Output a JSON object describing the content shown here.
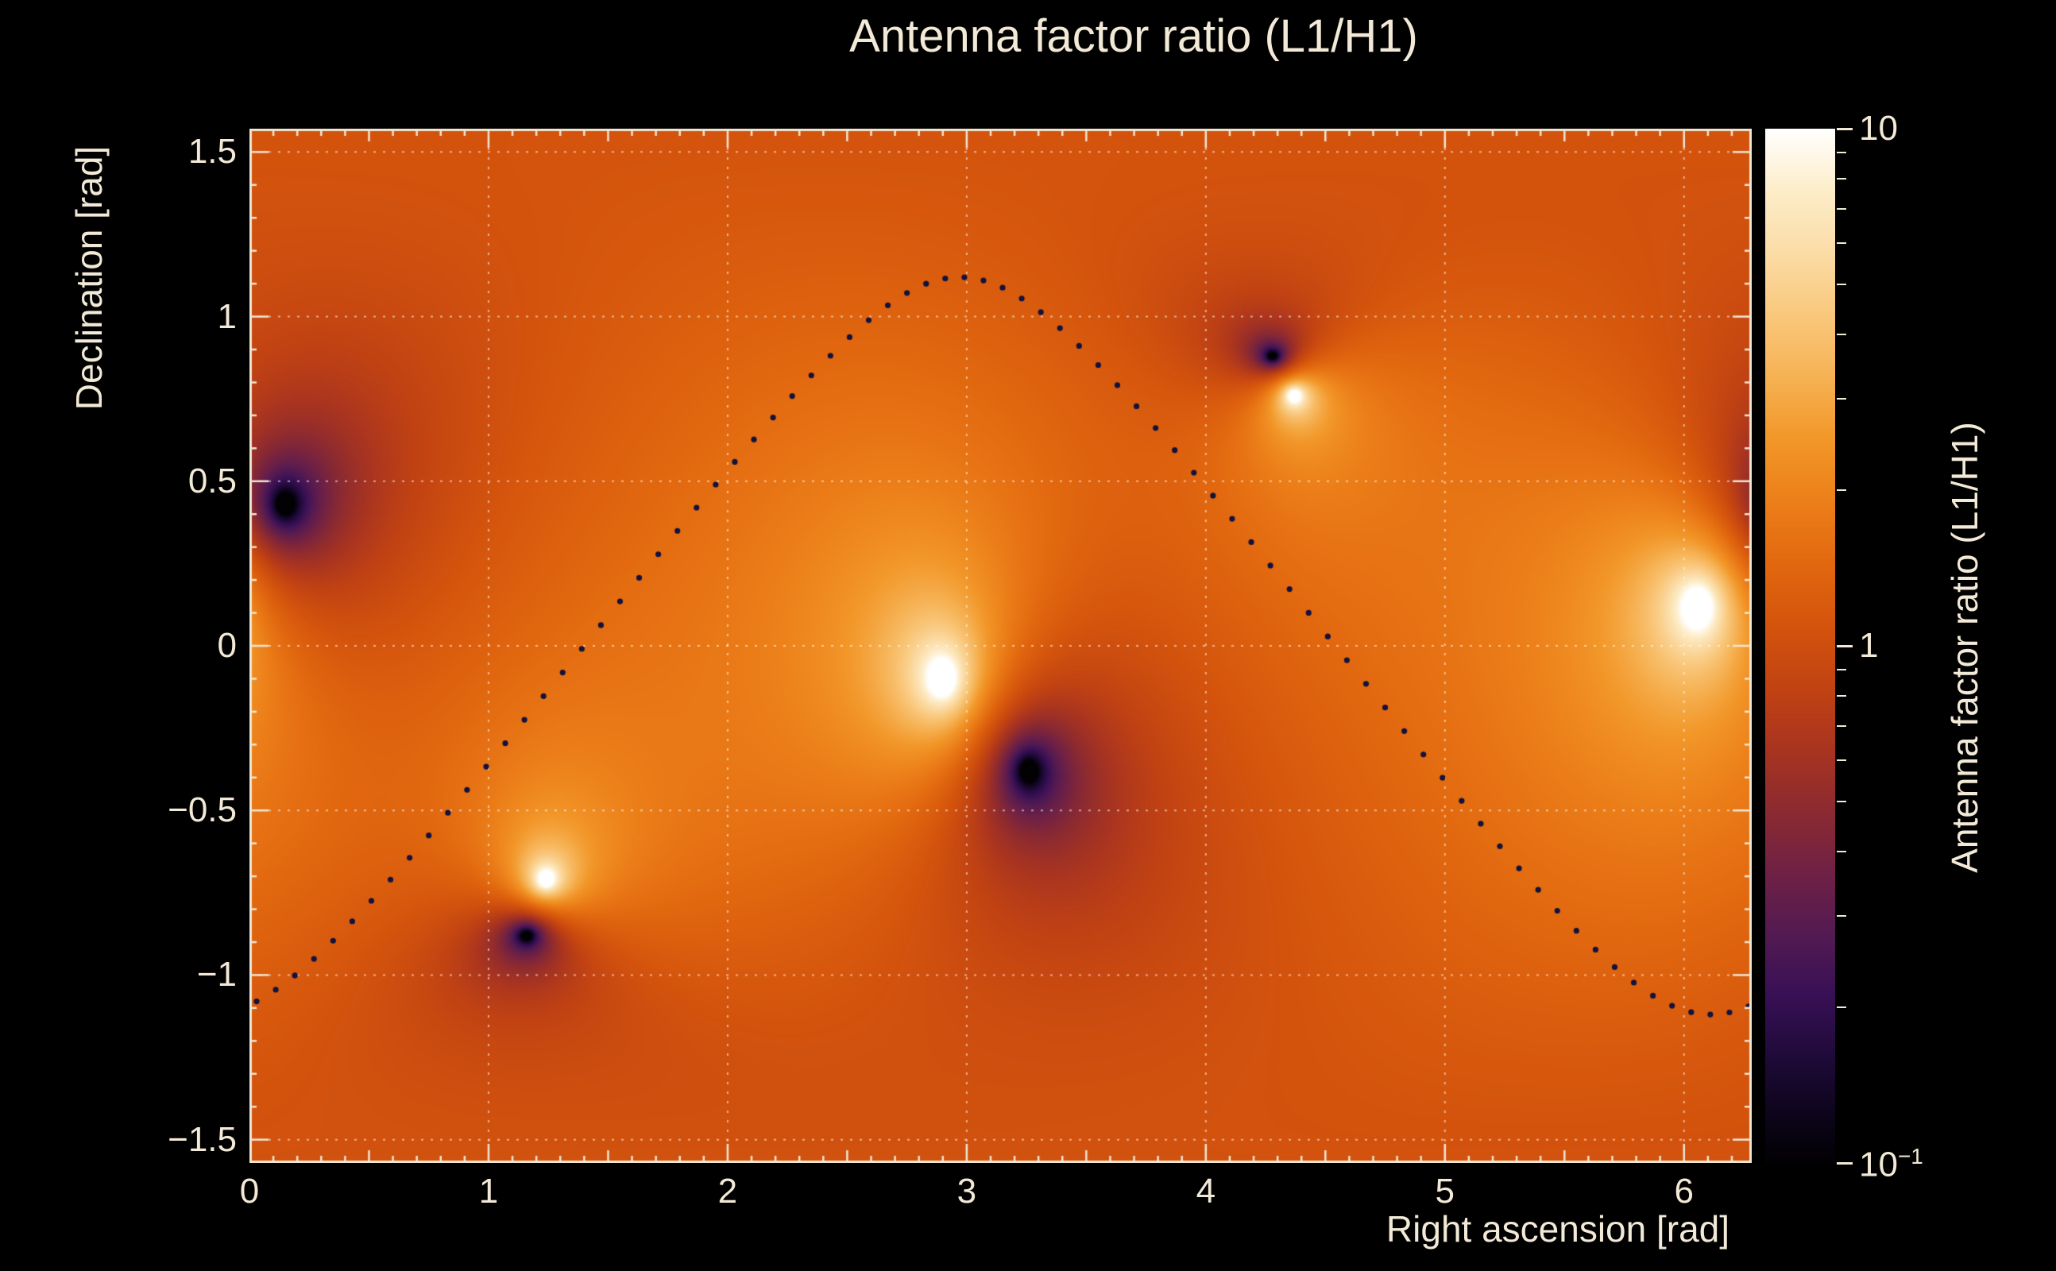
{
  "style": {
    "background": "#000000",
    "text_color": "#f2e9d6",
    "axis_color": "#f0e6d2",
    "grid_color": "rgba(255,255,255,0.55)",
    "dot_color": "#12123f",
    "colormap_stops": [
      [
        0.0,
        "#020103"
      ],
      [
        0.04,
        "#0b0418"
      ],
      [
        0.1,
        "#1e0a38"
      ],
      [
        0.16,
        "#371055"
      ],
      [
        0.22,
        "#531a52"
      ],
      [
        0.28,
        "#6f2145"
      ],
      [
        0.34,
        "#8c2a31"
      ],
      [
        0.4,
        "#a93420"
      ],
      [
        0.46,
        "#c24312"
      ],
      [
        0.52,
        "#d4540d"
      ],
      [
        0.58,
        "#e2680f"
      ],
      [
        0.64,
        "#ec7f19"
      ],
      [
        0.7,
        "#f29729"
      ],
      [
        0.76,
        "#f6b254"
      ],
      [
        0.82,
        "#f9c87d"
      ],
      [
        0.88,
        "#fbdca6"
      ],
      [
        0.94,
        "#fdedc9"
      ],
      [
        1.0,
        "#ffffff"
      ]
    ]
  },
  "chart_data": {
    "type": "heatmap",
    "title": "Antenna factor ratio (L1/H1)",
    "xlabel": "Right ascension [rad]",
    "ylabel": "Declination [rad]",
    "zlabel": "Antenna factor ratio (L1/H1)",
    "xlim": [
      0,
      6.2832
    ],
    "ylim": [
      -1.5708,
      1.5708
    ],
    "zlim": [
      0.1,
      10
    ],
    "zscale": "log",
    "grid": true,
    "x_ticks": [
      {
        "value": 0,
        "label": "0"
      },
      {
        "value": 1,
        "label": "1"
      },
      {
        "value": 2,
        "label": "2"
      },
      {
        "value": 3,
        "label": "3"
      },
      {
        "value": 4,
        "label": "4"
      },
      {
        "value": 5,
        "label": "5"
      },
      {
        "value": 6,
        "label": "6"
      }
    ],
    "x_minor_step": 0.1,
    "x_medium_step": 0.5,
    "y_ticks": [
      {
        "value": -1.5,
        "label": "−1.5"
      },
      {
        "value": -1,
        "label": "−1"
      },
      {
        "value": -0.5,
        "label": "−0.5"
      },
      {
        "value": 0,
        "label": "0"
      },
      {
        "value": 0.5,
        "label": "0.5"
      },
      {
        "value": 1,
        "label": "1"
      },
      {
        "value": 1.5,
        "label": "1.5"
      }
    ],
    "y_minor_step": 0.1,
    "colorbar_ticks": [
      {
        "value": 10,
        "base": "10",
        "sup": ""
      },
      {
        "value": 1,
        "base": "1",
        "sup": ""
      },
      {
        "value": 0.1,
        "base": "10",
        "sup": "−1"
      }
    ],
    "bright_spots_H1_nulls": [
      [
        2.9,
        -0.1
      ],
      [
        6.06,
        0.12
      ],
      [
        1.24,
        -0.71
      ],
      [
        4.37,
        0.76
      ]
    ],
    "dark_spots_L1_nulls": [
      [
        0.15,
        0.43
      ],
      [
        3.26,
        -0.38
      ],
      [
        1.16,
        -0.88
      ],
      [
        4.28,
        0.88
      ]
    ],
    "background_ratio": 1.35,
    "overlay_curve": {
      "style": "dotted",
      "model": "dec = asin(0.9·sin(ra − 1.40))",
      "amplitude": 0.9,
      "phase": 1.4,
      "ra_start": 0.03,
      "ra_step": 0.08,
      "n_dots": 79
    }
  }
}
